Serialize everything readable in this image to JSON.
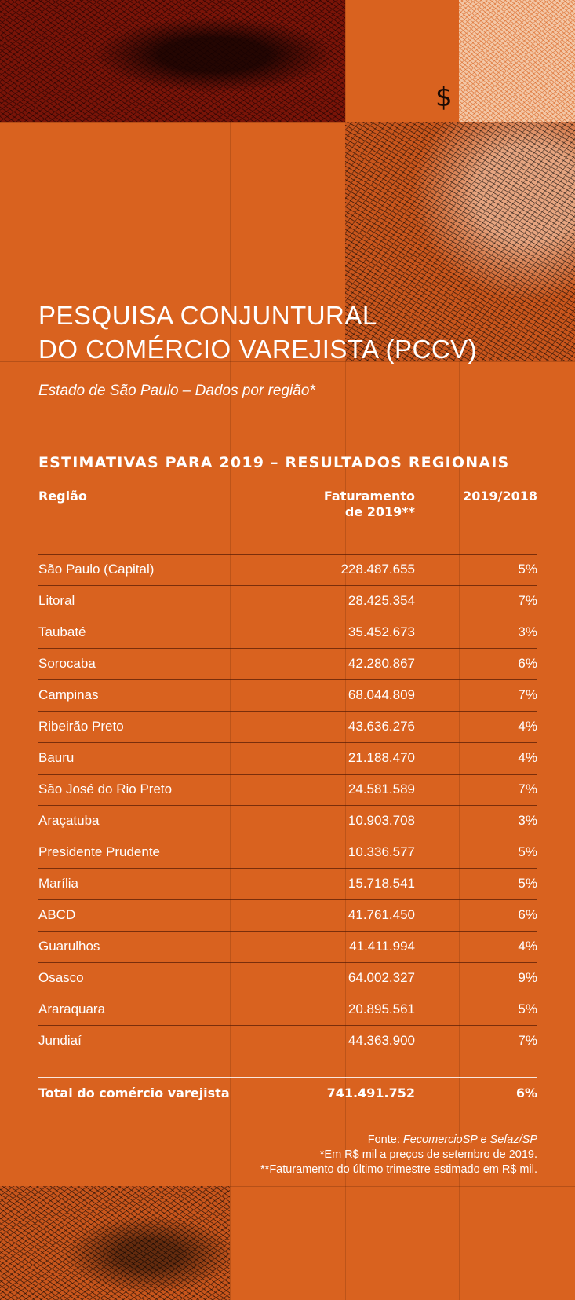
{
  "header": {
    "title_line1": "PESQUISA CONJUNTURAL",
    "title_line2": "DO COMÉRCIO VAREJISTA (PCCV)",
    "subtitle": "Estado de São Paulo – Dados por região*",
    "dollar_symbol": "$"
  },
  "table": {
    "section_title": "ESTIMATIVAS PARA 2019  –  RESULTADOS REGIONAIS",
    "columns": {
      "region": "Região",
      "revenue_line1": "Faturamento",
      "revenue_line2": "de 2019**",
      "change": "2019/2018"
    },
    "rows": [
      {
        "region": "São Paulo (Capital)",
        "revenue": "228.487.655",
        "change": "5%"
      },
      {
        "region": "Litoral",
        "revenue": "28.425.354",
        "change": "7%"
      },
      {
        "region": "Taubaté",
        "revenue": "35.452.673",
        "change": "3%"
      },
      {
        "region": "Sorocaba",
        "revenue": "42.280.867",
        "change": "6%"
      },
      {
        "region": "Campinas",
        "revenue": "68.044.809",
        "change": "7%"
      },
      {
        "region": "Ribeirão Preto",
        "revenue": "43.636.276",
        "change": "4%"
      },
      {
        "region": "Bauru",
        "revenue": "21.188.470",
        "change": "4%"
      },
      {
        "region": "São José do Rio Preto",
        "revenue": "24.581.589",
        "change": "7%"
      },
      {
        "region": "Araçatuba",
        "revenue": "10.903.708",
        "change": "3%"
      },
      {
        "region": "Presidente Prudente",
        "revenue": "10.336.577",
        "change": "5%"
      },
      {
        "region": "Marília",
        "revenue": "15.718.541",
        "change": "5%"
      },
      {
        "region": "ABCD",
        "revenue": "41.761.450",
        "change": "6%"
      },
      {
        "region": "Guarulhos",
        "revenue": "41.411.994",
        "change": "4%"
      },
      {
        "region": "Osasco",
        "revenue": "64.002.327",
        "change": "9%"
      },
      {
        "region": "Araraquara",
        "revenue": "20.895.561",
        "change": "5%"
      },
      {
        "region": "Jundiaí",
        "revenue": "44.363.900",
        "change": "7%"
      }
    ],
    "total": {
      "label": "Total do comércio varejista",
      "revenue": "741.491.752",
      "change": "6%"
    }
  },
  "footnotes": {
    "source_label": "Fonte: ",
    "source_value": "FecomercioSP e Sefaz/SP",
    "note1": "*Em R$ mil a preços de setembro de 2019.",
    "note2": "**Faturamento do último trimestre estimado em R$ mil."
  },
  "colors": {
    "background": "#d9621f",
    "text": "#ffffff",
    "art_dark": "#7a1408"
  }
}
